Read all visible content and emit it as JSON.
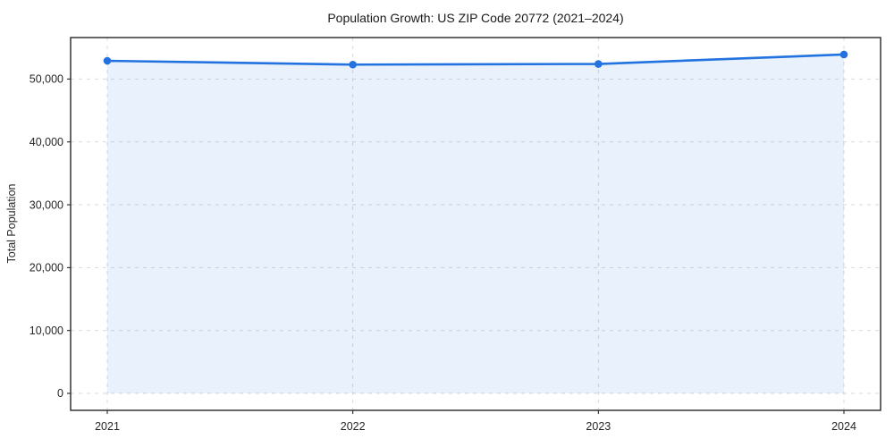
{
  "chart_data": {
    "type": "area",
    "title": "Population Growth: US ZIP Code 20772 (2021–2024)",
    "xlabel": "",
    "ylabel": "Total Population",
    "categories": [
      "2021",
      "2022",
      "2023",
      "2024"
    ],
    "series": [
      {
        "name": "Total Population",
        "values": [
          52900,
          52300,
          52400,
          53900
        ]
      }
    ],
    "ylim": [
      -2700,
      56600
    ],
    "y_ticks": [
      {
        "value": 0,
        "label": "0"
      },
      {
        "value": 10000,
        "label": "10,000"
      },
      {
        "value": 20000,
        "label": "20,000"
      },
      {
        "value": 30000,
        "label": "30,000"
      },
      {
        "value": 40000,
        "label": "40,000"
      },
      {
        "value": 50000,
        "label": "50,000"
      }
    ],
    "grid": true,
    "legend": "none",
    "colors": {
      "line": "#2272e0",
      "area_fill": "#2272e0",
      "grid": "#d9d9d9",
      "axis": "#262626",
      "tick_label": "#262626",
      "background": "#ffffff"
    }
  }
}
